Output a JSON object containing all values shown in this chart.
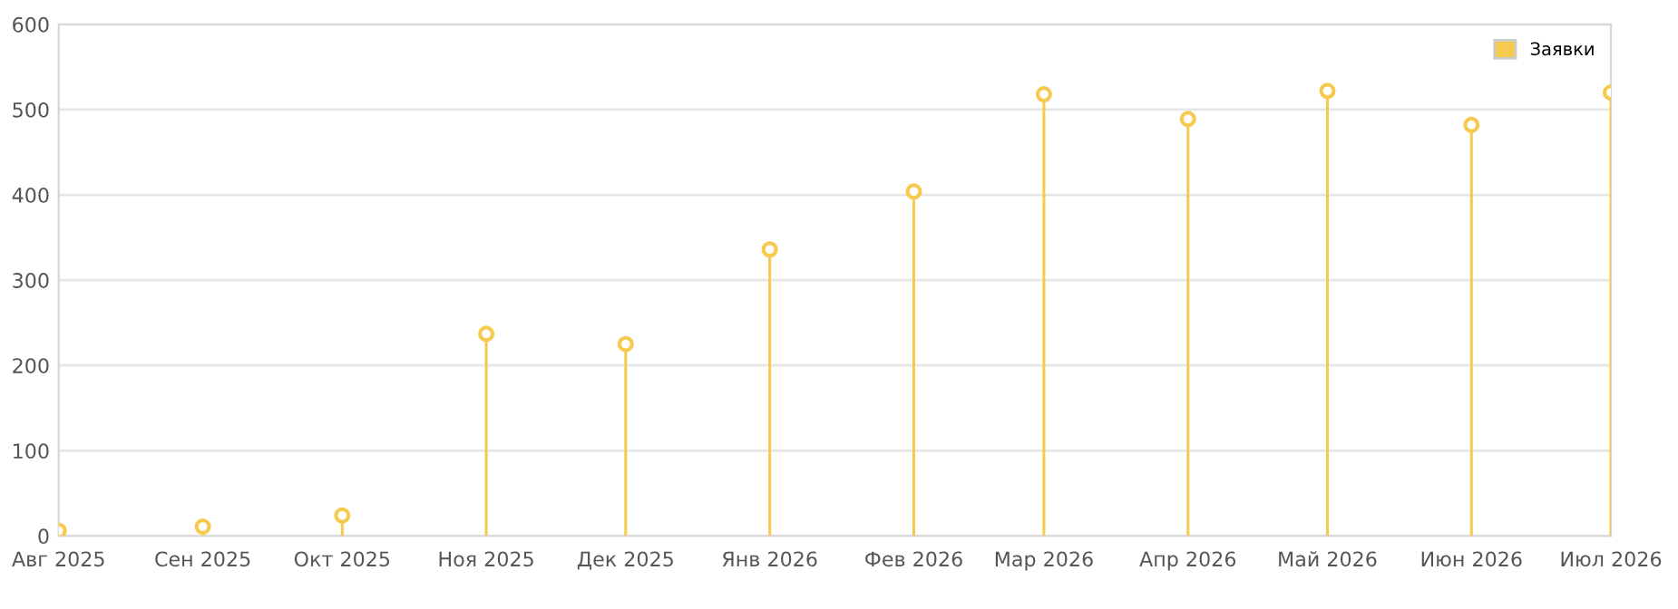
{
  "chart_data": {
    "type": "lollipop",
    "x": [
      "2025-08-01",
      "2025-09-01",
      "2025-10-01",
      "2025-11-01",
      "2025-12-01",
      "2026-01-01",
      "2026-02-01",
      "2026-03-01",
      "2026-04-01",
      "2026-05-01",
      "2026-06-01",
      "2026-07-01"
    ],
    "series": [
      {
        "name": "Заявки",
        "color": "#f5ca4e",
        "values": [
          6,
          11,
          24,
          237,
          225,
          336,
          404,
          518,
          489,
          522,
          482,
          520
        ]
      }
    ],
    "xlim": [
      "2025-08-01",
      "2026-07-01"
    ],
    "xticks": [
      {
        "value": "2025-08-01",
        "label": "Авг 2025"
      },
      {
        "value": "2025-09-01",
        "label": "Сен 2025"
      },
      {
        "value": "2025-10-01",
        "label": "Окт 2025"
      },
      {
        "value": "2025-11-01",
        "label": "Ноя 2025"
      },
      {
        "value": "2025-12-01",
        "label": "Дек 2025"
      },
      {
        "value": "2026-01-01",
        "label": "Янв 2026"
      },
      {
        "value": "2026-02-01",
        "label": "Фев 2026"
      },
      {
        "value": "2026-03-01",
        "label": "Мар 2026"
      },
      {
        "value": "2026-04-01",
        "label": "Апр 2026"
      },
      {
        "value": "2026-05-01",
        "label": "Май 2026"
      },
      {
        "value": "2026-06-01",
        "label": "Июн 2026"
      },
      {
        "value": "2026-07-01",
        "label": "Июл 2026"
      }
    ],
    "ylim": [
      0,
      600
    ],
    "yticks": [
      0,
      100,
      200,
      300,
      400,
      500,
      600
    ],
    "grid": "y",
    "legend": "top right",
    "marker": "circle"
  }
}
